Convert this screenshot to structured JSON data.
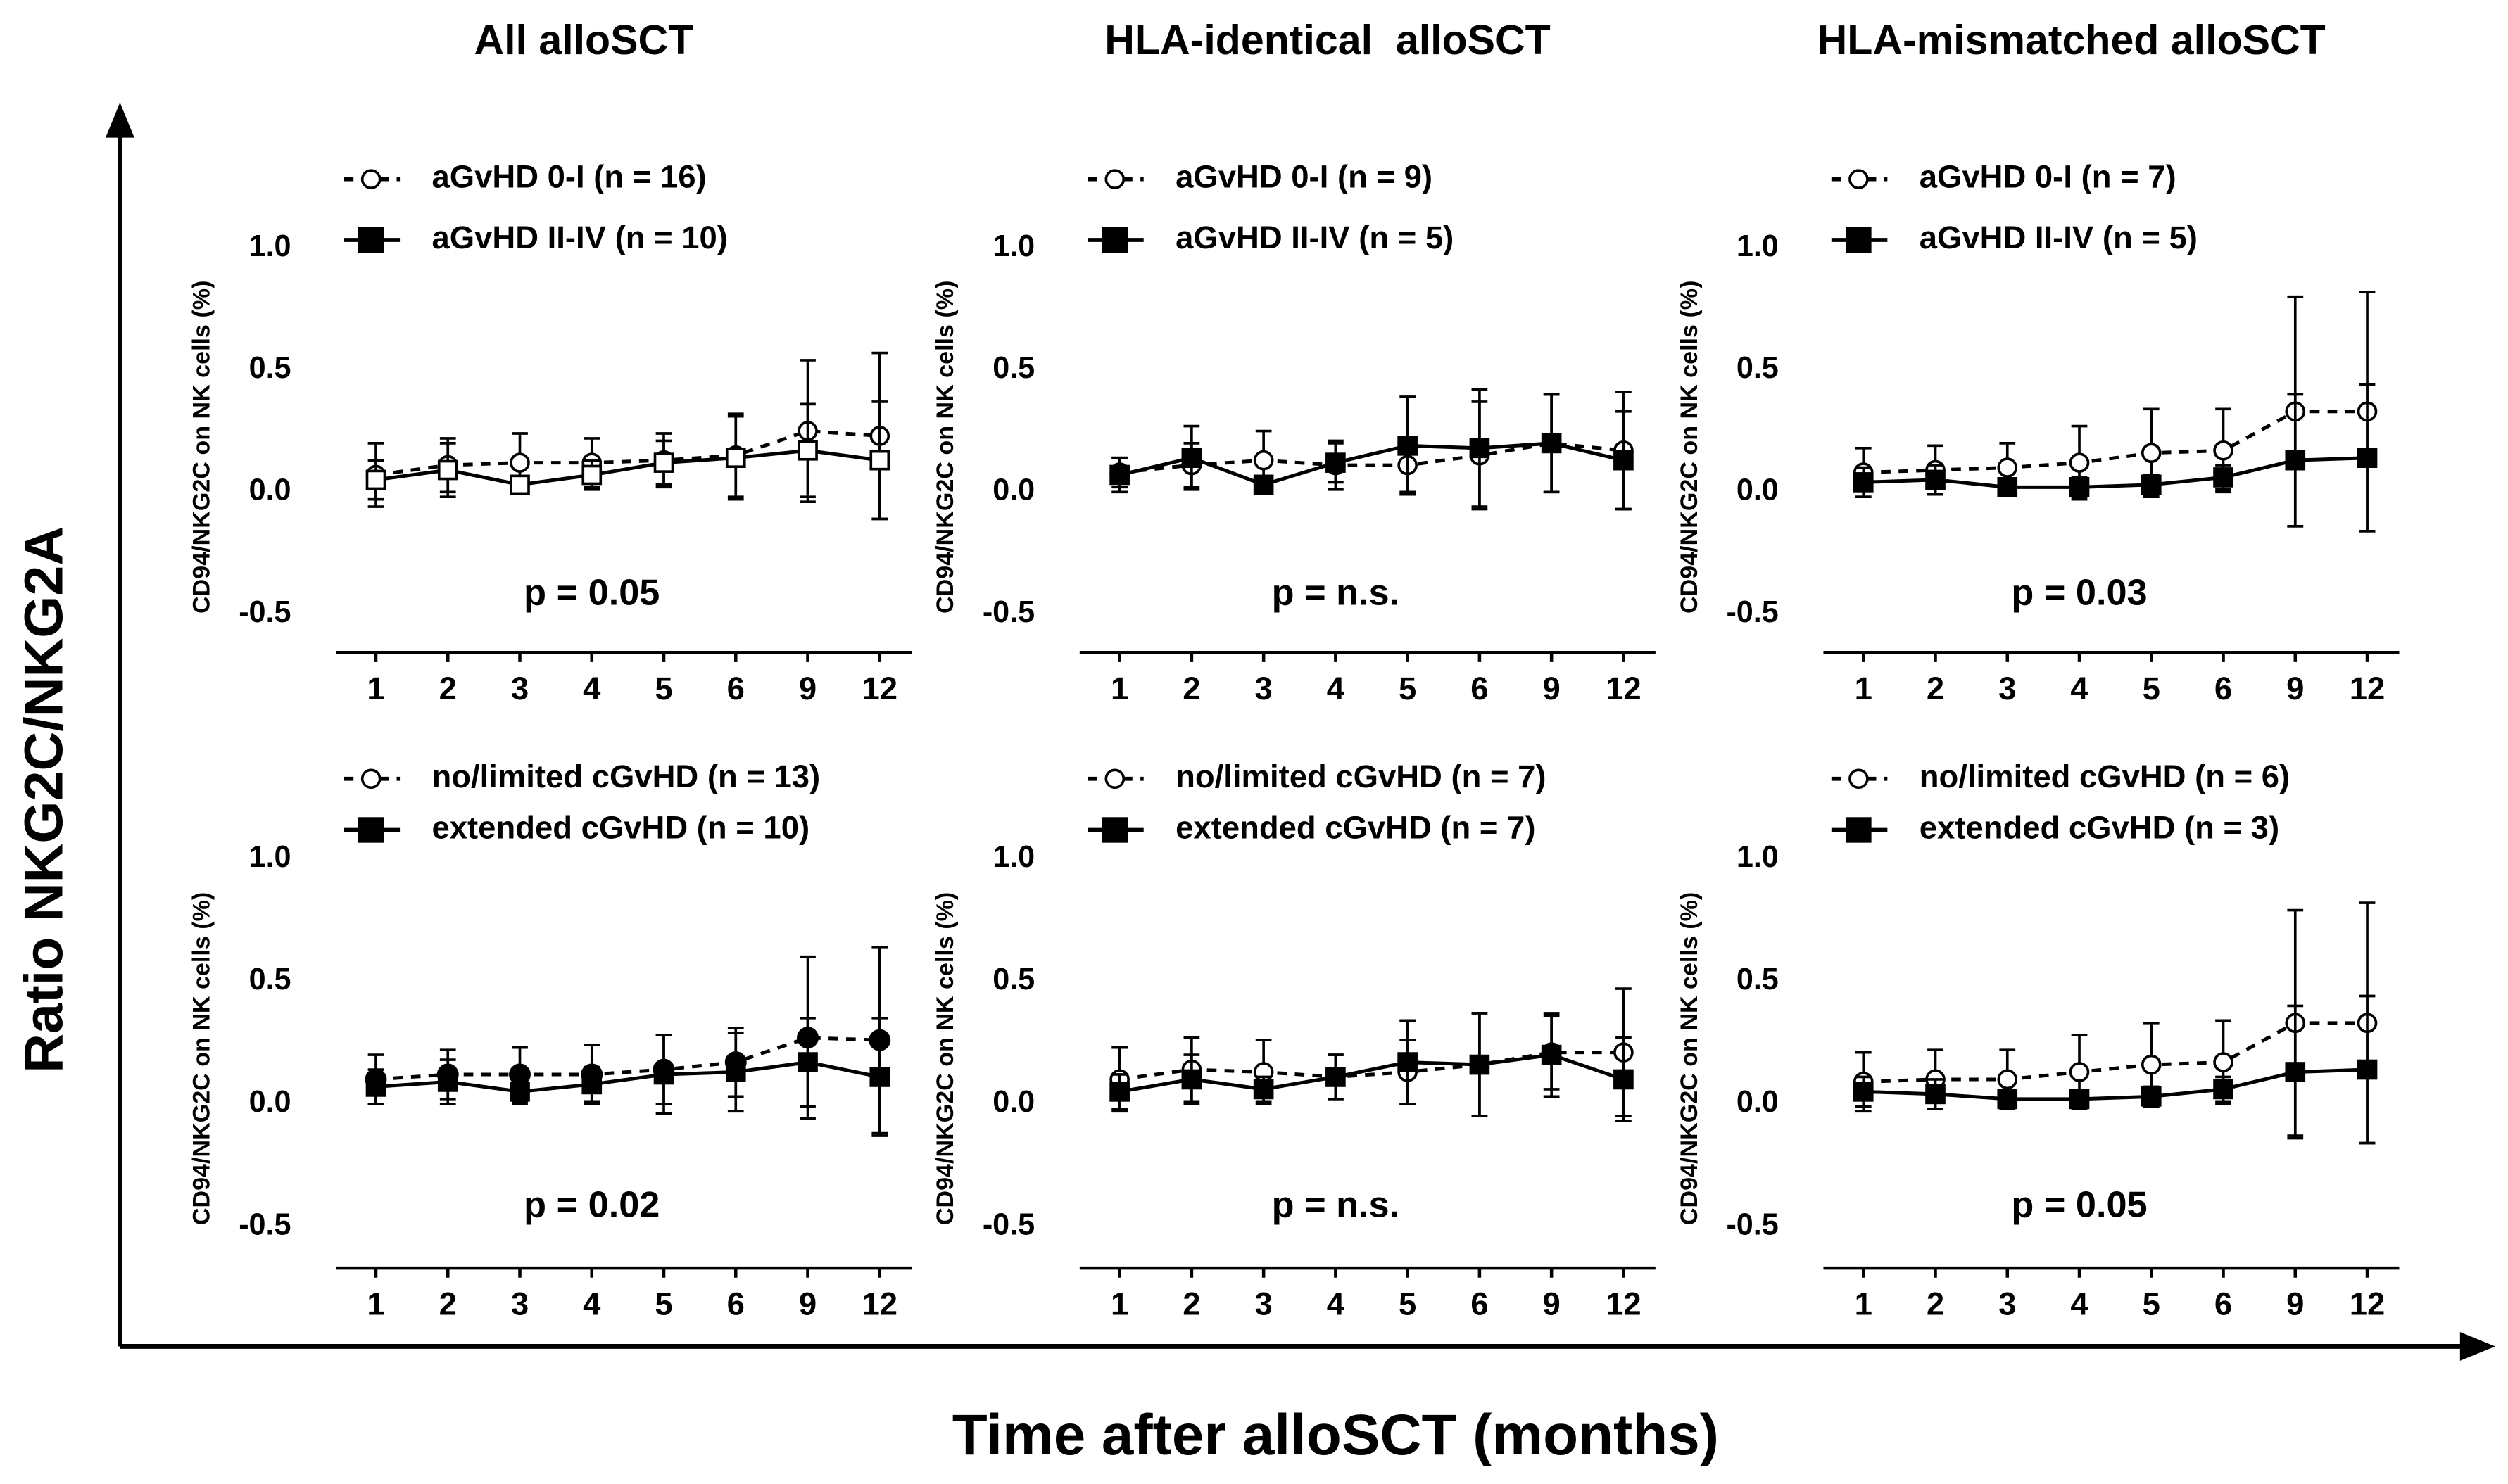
{
  "figure": {
    "ylabel": "Ratio NKG2C/NKG2A",
    "xlabel": "Time after alloSCT (months)"
  },
  "chart_data": [
    {
      "type": "line",
      "title": "All alloSCT",
      "ylabel": "CD94/NKG2C on NK cells (%)",
      "annotation": "p = 0.05",
      "categories": [
        "1",
        "2",
        "3",
        "4",
        "5",
        "6",
        "9",
        "12"
      ],
      "ylim": [
        -0.5,
        1.0
      ],
      "yticks": [
        {
          "value": -0.5,
          "label": "-0.5"
        },
        {
          "value": 0,
          "label": "0.0"
        },
        0.5,
        {
          "value": 1,
          "label": "1.0"
        }
      ],
      "series": [
        {
          "name": "aGvHD 0-I (n = 16)",
          "color": "#000000",
          "marker": "open-circle",
          "dashed": true,
          "values": [
            0.07,
            0.11,
            0.12,
            0.12,
            0.13,
            0.15,
            0.25,
            0.23
          ],
          "errors": [
            0.13,
            0.11,
            0.12,
            0.1,
            0.11,
            0.17,
            0.29,
            0.34
          ]
        },
        {
          "name": "aGvHD II-IV (n = 10)",
          "color": "#000000",
          "marker": "open-square",
          "dashed": false,
          "values": [
            0.05,
            0.09,
            0.03,
            0.07,
            0.12,
            0.14,
            0.17,
            0.13
          ],
          "errors": [
            0.08,
            0.11,
            0.03,
            0.06,
            0.09,
            0.17,
            0.19,
            0.24
          ]
        }
      ]
    },
    {
      "type": "line",
      "title": "HLA-identical  alloSCT",
      "ylabel": "CD94/NKG2C on NK cells (%)",
      "annotation": "p = n.s.",
      "categories": [
        "1",
        "2",
        "3",
        "4",
        "5",
        "6",
        "9",
        "12"
      ],
      "ylim": [
        -0.5,
        1.0
      ],
      "yticks": [
        {
          "value": -0.5,
          "label": "-0.5"
        },
        {
          "value": 0,
          "label": "0.0"
        },
        0.5,
        {
          "value": 1,
          "label": "1.0"
        }
      ],
      "series": [
        {
          "name": "aGvHD 0-I (n = 9)",
          "color": "#000000",
          "marker": "open-circle",
          "dashed": true,
          "values": [
            0.08,
            0.11,
            0.13,
            0.11,
            0.11,
            0.15,
            0.2,
            0.17
          ],
          "errors": [
            0.06,
            0.09,
            0.12,
            0.1,
            0.11,
            0.22,
            0.2,
            0.24
          ]
        },
        {
          "name": "aGvHD II-IV (n = 5)",
          "color": "#000000",
          "marker": "filled-square",
          "dashed": false,
          "values": [
            0.07,
            0.14,
            0.03,
            0.12,
            0.19,
            0.18,
            0.2,
            0.13
          ],
          "errors": [
            0.07,
            0.13,
            0.02,
            0.08,
            0.2,
            0.24,
            0.2,
            0.2
          ]
        }
      ]
    },
    {
      "type": "line",
      "title": "HLA-mismatched alloSCT",
      "ylabel": "CD94/NKG2C on NK cells (%)",
      "annotation": "p = 0.03",
      "categories": [
        "1",
        "2",
        "3",
        "4",
        "5",
        "6",
        "9",
        "12"
      ],
      "ylim": [
        -0.5,
        1.0
      ],
      "yticks": [
        {
          "value": -0.5,
          "label": "-0.5"
        },
        {
          "value": 0,
          "label": "0.0"
        },
        0.5,
        {
          "value": 1,
          "label": "1.0"
        }
      ],
      "series": [
        {
          "name": "aGvHD 0-I (n = 7)",
          "color": "#000000",
          "marker": "open-circle",
          "dashed": true,
          "values": [
            0.08,
            0.09,
            0.1,
            0.12,
            0.16,
            0.17,
            0.33,
            0.33
          ],
          "errors": [
            0.1,
            0.1,
            0.1,
            0.15,
            0.18,
            0.17,
            0.47,
            0.49
          ]
        },
        {
          "name": "aGvHD II-IV (n = 5)",
          "color": "#000000",
          "marker": "filled-square",
          "dashed": false,
          "values": [
            0.04,
            0.05,
            0.02,
            0.02,
            0.03,
            0.06,
            0.13,
            0.14
          ],
          "errors": [
            0.06,
            0.06,
            0.02,
            0.04,
            0.04,
            0.05,
            0.27,
            0.3
          ]
        }
      ]
    },
    {
      "type": "line",
      "ylabel": "CD94/NKG2C on NK cells (%)",
      "annotation": "p = 0.02",
      "categories": [
        "1",
        "2",
        "3",
        "4",
        "5",
        "6",
        "9",
        "12"
      ],
      "ylim": [
        -0.5,
        1.0
      ],
      "yticks": [
        {
          "value": -0.5,
          "label": "-0.5"
        },
        {
          "value": 0,
          "label": "0.0"
        },
        0.5,
        {
          "value": 1,
          "label": "1.0"
        }
      ],
      "series": [
        {
          "name": "no/limited cGvHD (n = 13)",
          "color": "#000000",
          "marker": "filled-circle",
          "dashed": true,
          "values": [
            0.1,
            0.12,
            0.12,
            0.12,
            0.14,
            0.17,
            0.27,
            0.26
          ],
          "errors": [
            0.1,
            0.1,
            0.11,
            0.12,
            0.14,
            0.14,
            0.33,
            0.38
          ]
        },
        {
          "name": "extended cGvHD (n = 10)",
          "color": "#000000",
          "marker": "filled-square",
          "dashed": false,
          "values": [
            0.07,
            0.09,
            0.05,
            0.08,
            0.12,
            0.13,
            0.17,
            0.11
          ],
          "errors": [
            0.07,
            0.09,
            0.05,
            0.07,
            0.16,
            0.16,
            0.18,
            0.24
          ]
        }
      ]
    },
    {
      "type": "line",
      "ylabel": "CD94/NKG2C on NK cells (%)",
      "annotation": "p = n.s.",
      "categories": [
        "1",
        "2",
        "3",
        "4",
        "5",
        "6",
        "9",
        "12"
      ],
      "ylim": [
        -0.5,
        1.0
      ],
      "yticks": [
        {
          "value": -0.5,
          "label": "-0.5"
        },
        {
          "value": 0,
          "label": "0.0"
        },
        0.5,
        {
          "value": 1,
          "label": "1.0"
        }
      ],
      "series": [
        {
          "name": "no/limited cGvHD (n = 7)",
          "color": "#000000",
          "marker": "open-circle",
          "dashed": true,
          "values": [
            0.1,
            0.14,
            0.13,
            0.11,
            0.13,
            0.16,
            0.21,
            0.21
          ],
          "errors": [
            0.13,
            0.13,
            0.13,
            0.09,
            0.13,
            0.21,
            0.15,
            0.26
          ]
        },
        {
          "name": "extended cGvHD (n = 7)",
          "color": "#000000",
          "marker": "filled-square",
          "dashed": false,
          "values": [
            0.05,
            0.1,
            0.06,
            0.11,
            0.17,
            0.16,
            0.2,
            0.1
          ],
          "errors": [
            0.07,
            0.1,
            0.05,
            0.09,
            0.17,
            0.21,
            0.17,
            0.17
          ]
        }
      ]
    },
    {
      "type": "line",
      "ylabel": "CD94/NKG2C on NK cells (%)",
      "annotation": "p = 0.05",
      "categories": [
        "1",
        "2",
        "3",
        "4",
        "5",
        "6",
        "9",
        "12"
      ],
      "ylim": [
        -0.5,
        1.0
      ],
      "yticks": [
        {
          "value": -0.5,
          "label": "-0.5"
        },
        {
          "value": 0,
          "label": "0.0"
        },
        0.5,
        {
          "value": 1,
          "label": "1.0"
        }
      ],
      "series": [
        {
          "name": "no/limited cGvHD (n = 6)",
          "color": "#000000",
          "marker": "open-circle",
          "dashed": true,
          "values": [
            0.09,
            0.1,
            0.1,
            0.13,
            0.16,
            0.17,
            0.33,
            0.33
          ],
          "errors": [
            0.12,
            0.12,
            0.12,
            0.15,
            0.17,
            0.17,
            0.46,
            0.49
          ]
        },
        {
          "name": "extended cGvHD (n = 3)",
          "color": "#000000",
          "marker": "filled-square",
          "dashed": false,
          "values": [
            0.05,
            0.04,
            0.02,
            0.02,
            0.03,
            0.06,
            0.13,
            0.14
          ],
          "errors": [
            0.06,
            0.06,
            0.03,
            0.03,
            0.04,
            0.05,
            0.27,
            0.3
          ]
        }
      ]
    }
  ]
}
